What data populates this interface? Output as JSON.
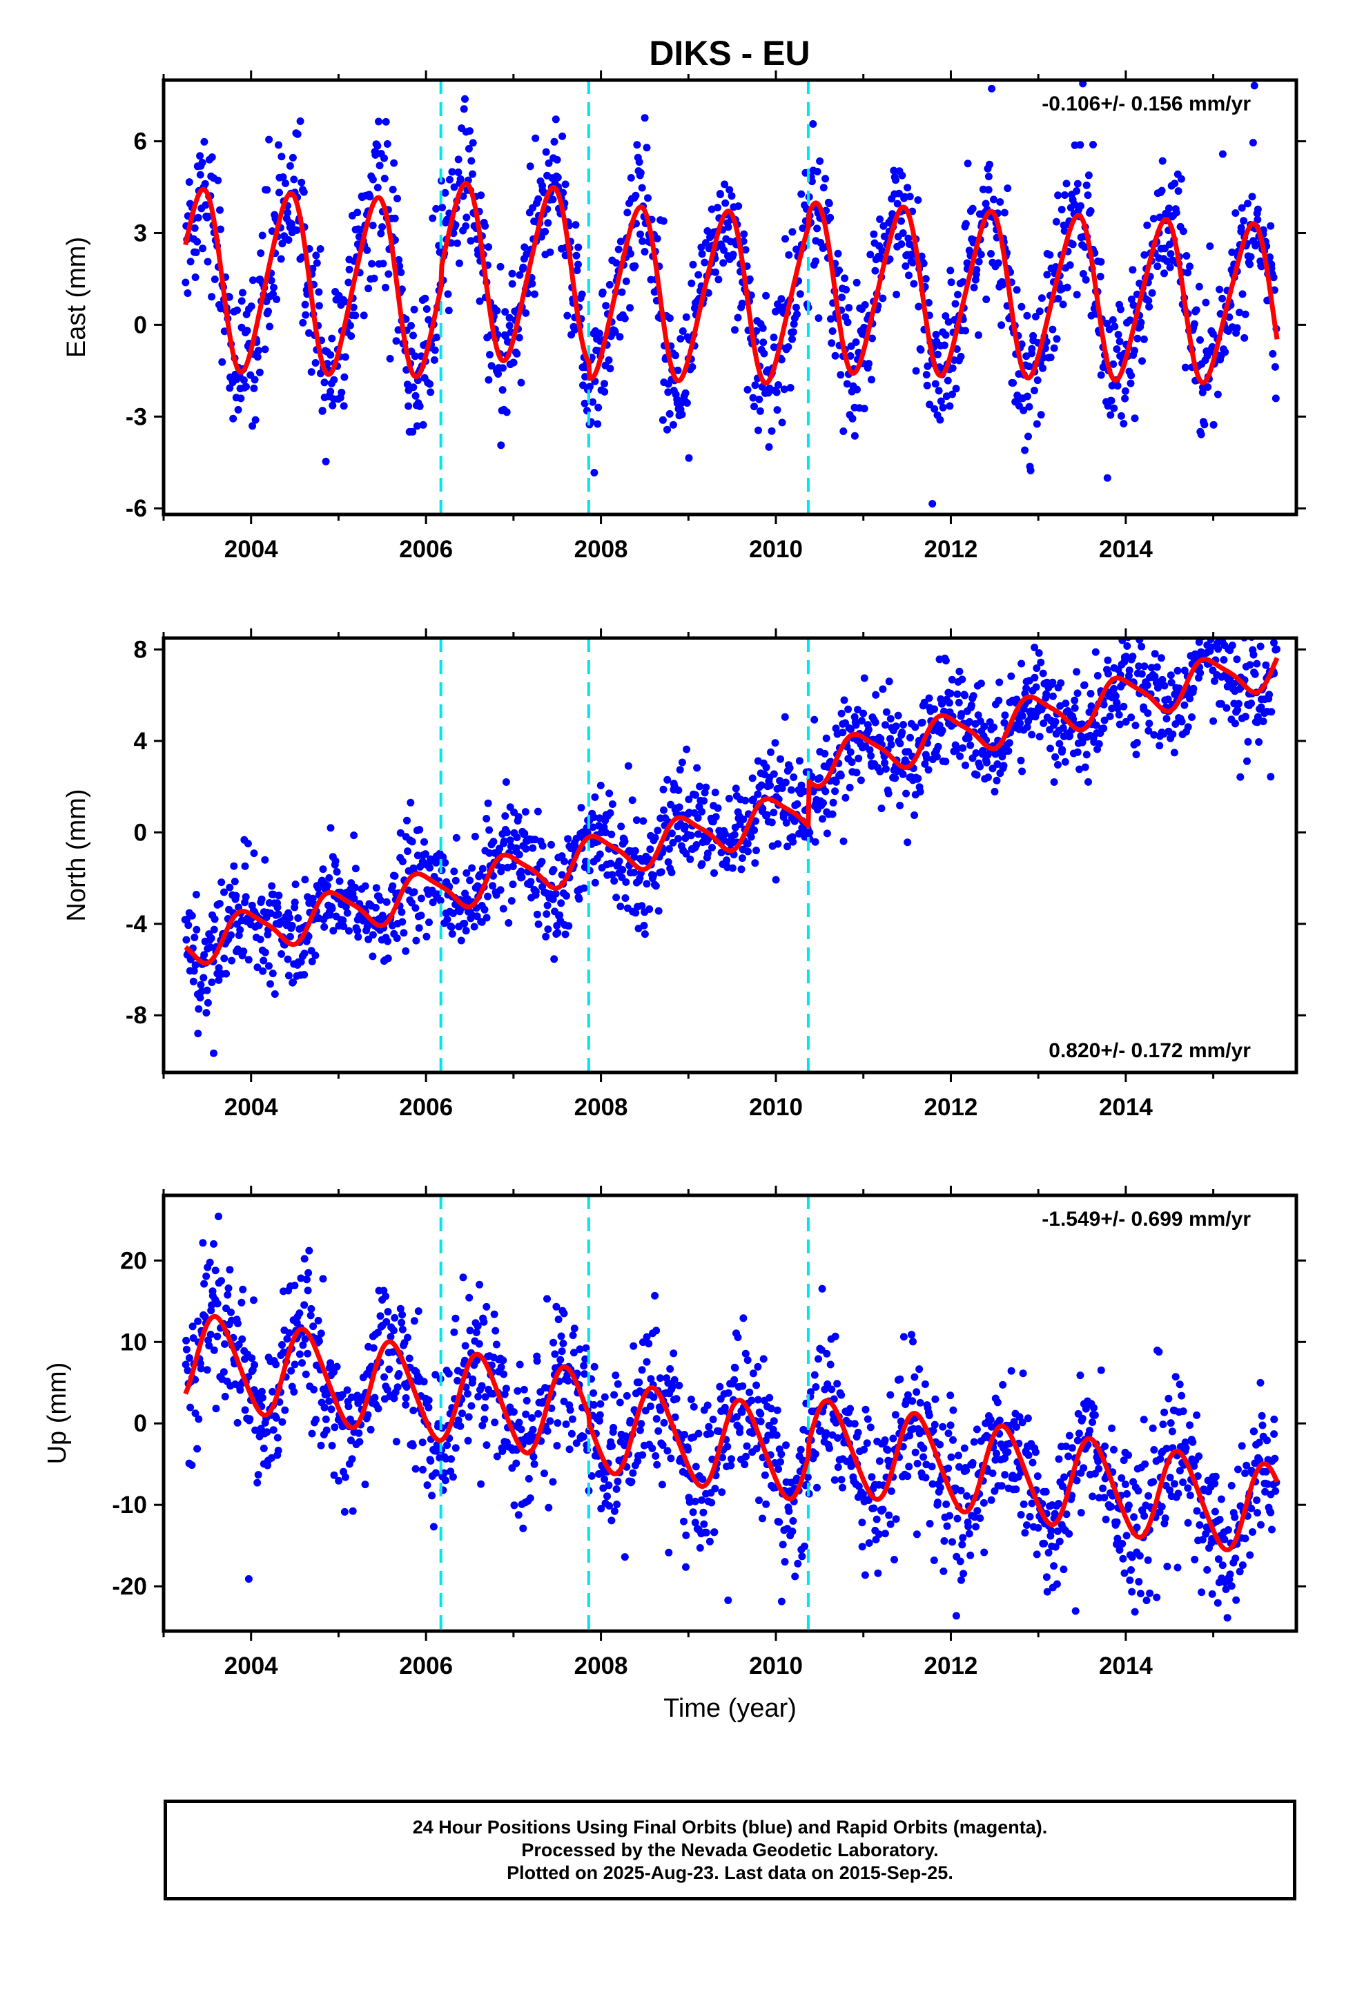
{
  "title": "DIKS - EU",
  "caption": {
    "line1": "24 Hour Positions Using Final Orbits (blue) and Rapid Orbits (magenta).",
    "line2": "Processed by the Nevada Geodetic Laboratory.",
    "line3": "Plotted on 2025-Aug-23. Last data on 2015-Sep-25."
  },
  "colors": {
    "points": "#0000ff",
    "fit": "#ff0000",
    "breaks": "#00e5ee",
    "frame": "#000000"
  },
  "chart_data": [
    {
      "type": "scatter",
      "component": "east",
      "ylabel": "East (mm)",
      "xlabel": "",
      "rate_text": "-0.106+/- 0.156 mm/yr",
      "rate_position": "top-right",
      "xlim": [
        2003.0,
        2015.95
      ],
      "ylim": [
        -6.2,
        8.0
      ],
      "xticks": [
        2004,
        2006,
        2008,
        2010,
        2012,
        2014
      ],
      "xtick_labels": [
        "2004",
        "2006",
        "2008",
        "2010",
        "2012",
        "2014"
      ],
      "yticks": [
        -6,
        -3,
        0,
        3,
        6
      ],
      "ytick_labels": [
        "-6",
        "-3",
        "0",
        "3",
        "6"
      ],
      "data_start": 2003.25,
      "data_end": 2015.73,
      "break_epochs": [
        2006.17,
        2007.86,
        2010.37
      ],
      "fit_model": {
        "offset": 1.5,
        "rate": -0.106,
        "annual_amp": 2.9,
        "annual_amp_change": -0.03,
        "annual_peak": 2003.42,
        "semiannual_amp": 0.35,
        "semiannual_peak": 2003.55,
        "steps": [
          0.6,
          -0.5,
          0.4
        ]
      },
      "scatter_std": 1.2,
      "points_per_year": 130
    },
    {
      "type": "scatter",
      "component": "north",
      "ylabel": "North (mm)",
      "xlabel": "",
      "rate_text": "0.820+/- 0.172 mm/yr",
      "rate_position": "bottom-right",
      "xlim": [
        2003.0,
        2015.95
      ],
      "ylim": [
        -10.5,
        8.5
      ],
      "xticks": [
        2004,
        2006,
        2008,
        2010,
        2012,
        2014
      ],
      "xtick_labels": [
        "2004",
        "2006",
        "2008",
        "2010",
        "2012",
        "2014"
      ],
      "yticks": [
        -8,
        -4,
        0,
        4,
        8
      ],
      "ytick_labels": [
        "-8",
        "-4",
        "0",
        "4",
        "8"
      ],
      "data_start": 2003.25,
      "data_end": 2015.73,
      "break_epochs": [
        2006.17,
        2007.86,
        2010.37
      ],
      "fit_model": {
        "offset": -4.9,
        "rate": 0.82,
        "annual_amp": 0.9,
        "annual_amp_change": 0.0,
        "annual_peak": 2003.95,
        "semiannual_amp": 0.2,
        "semiannual_peak": 2003.3,
        "steps": [
          0.0,
          0.0,
          2.0
        ]
      },
      "scatter_std": 1.1,
      "points_per_year": 130
    },
    {
      "type": "scatter",
      "component": "up",
      "ylabel": "Up (mm)",
      "xlabel": "Time (year)",
      "rate_text": "-1.549+/- 0.699 mm/yr",
      "rate_position": "top-right",
      "xlim": [
        2003.0,
        2015.95
      ],
      "ylim": [
        -25.5,
        28.0
      ],
      "xticks": [
        2004,
        2006,
        2008,
        2010,
        2012,
        2014
      ],
      "xtick_labels": [
        "2004",
        "2006",
        "2008",
        "2010",
        "2012",
        "2014"
      ],
      "yticks": [
        -20,
        -10,
        0,
        10,
        20
      ],
      "ytick_labels": [
        "-20",
        "-10",
        "0",
        "10",
        "20"
      ],
      "data_start": 2003.25,
      "data_end": 2015.73,
      "break_epochs": [
        2006.17,
        2007.86,
        2010.37
      ],
      "fit_model": {
        "offset": 8.0,
        "rate": -1.549,
        "annual_amp": 5.5,
        "annual_amp_change": 0.0,
        "annual_peak": 2003.62,
        "semiannual_amp": 0.6,
        "semiannual_peak": 2003.5,
        "steps": [
          0.0,
          -1.0,
          1.5
        ]
      },
      "scatter_std": 4.5,
      "points_per_year": 130
    }
  ]
}
